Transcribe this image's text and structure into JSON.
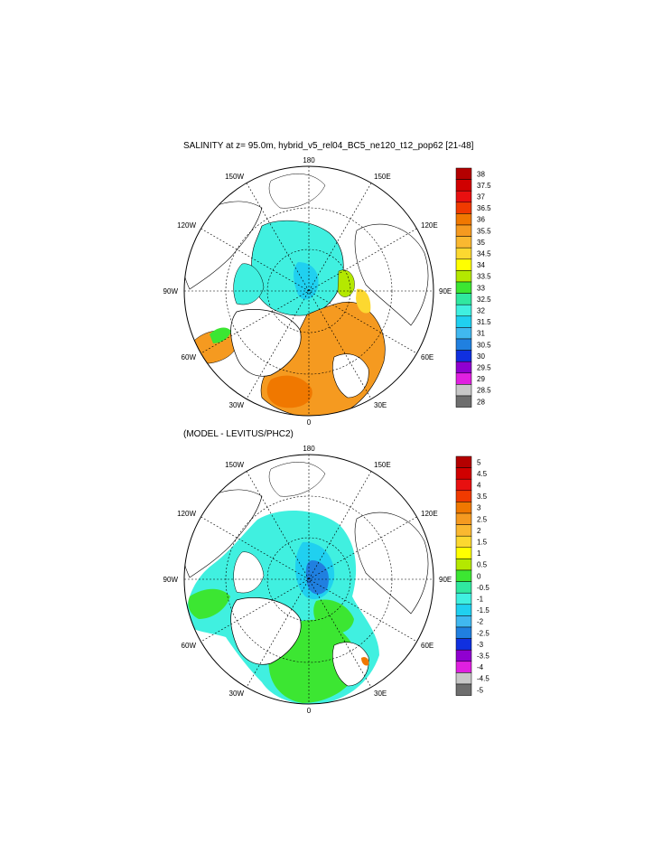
{
  "panel1": {
    "title": "SALINITY at z=  95.0m, hybrid_v5_rel04_BC5_ne120_t12_pop62 [21-48]",
    "lon_labels": {
      "top": "180",
      "bottom": "0",
      "left": "90W",
      "right": "90E",
      "ul": "150W",
      "ur": "150E",
      "ml": "120W",
      "mr": "120E",
      "ll": "60W",
      "lr": "60E",
      "bl": "30W",
      "br": "30E"
    },
    "colorbar": {
      "labels": [
        "38",
        "37.5",
        "37",
        "36.5",
        "36",
        "35.5",
        "35",
        "34.5",
        "34",
        "33.5",
        "33",
        "32.5",
        "32",
        "31.5",
        "31",
        "30.5",
        "30",
        "29.5",
        "29",
        "28.5",
        "28"
      ],
      "colors": [
        "#b40000",
        "#d00000",
        "#e81010",
        "#f03a00",
        "#f07800",
        "#f59a20",
        "#fab830",
        "#fcd830",
        "#ffff00",
        "#b4e800",
        "#3ce632",
        "#30e8a0",
        "#40f0e0",
        "#20d0f0",
        "#40b8f0",
        "#2080e0",
        "#1030e0",
        "#9000d0",
        "#e020e0",
        "#c8c8c8",
        "#6e6e6e"
      ]
    }
  },
  "panel2": {
    "title": "(MODEL - LEVITUS/PHC2)",
    "lon_labels": {
      "top": "180",
      "bottom": "0",
      "left": "90W",
      "right": "90E",
      "ul": "150W",
      "ur": "150E",
      "ml": "120W",
      "mr": "120E",
      "ll": "60W",
      "lr": "60E",
      "bl": "30W",
      "br": "30E"
    },
    "colorbar": {
      "labels": [
        "5",
        "4.5",
        "4",
        "3.5",
        "3",
        "2.5",
        "2",
        "1.5",
        "1",
        "0.5",
        "0",
        "-0.5",
        "-1",
        "-1.5",
        "-2",
        "-2.5",
        "-3",
        "-3.5",
        "-4",
        "-4.5",
        "-5"
      ],
      "colors": [
        "#b40000",
        "#d00000",
        "#e81010",
        "#f03a00",
        "#f07800",
        "#f59a20",
        "#fab830",
        "#fcd830",
        "#ffff00",
        "#b4e800",
        "#3ce632",
        "#30e8a0",
        "#40f0e0",
        "#20d0f0",
        "#40b8f0",
        "#2080e0",
        "#1030e0",
        "#9000d0",
        "#e020e0",
        "#c8c8c8",
        "#6e6e6e"
      ]
    }
  }
}
